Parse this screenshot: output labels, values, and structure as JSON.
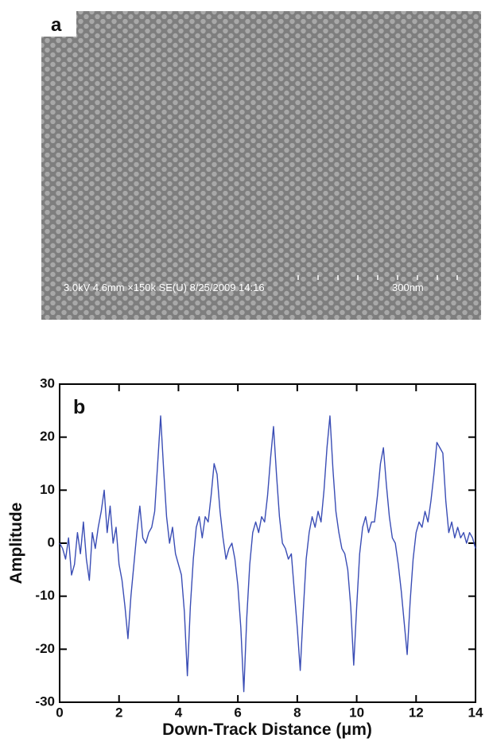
{
  "image_panel": {
    "label": "a",
    "info": "3.0kV 4.6mm ×150k SE(U) 8/25/2009 14:16",
    "scale_label": "300nm"
  },
  "chart_data": {
    "type": "line",
    "panel_label": "b",
    "x_label": "Down-Track Distance (μm)",
    "y_label": "Amplitude",
    "color": "#3a4db5",
    "x": [
      0,
      0.1,
      0.2,
      0.3,
      0.4,
      0.5,
      0.6,
      0.7,
      0.8,
      0.9,
      1,
      1.1,
      1.2,
      1.3,
      1.4,
      1.5,
      1.6,
      1.7,
      1.8,
      1.9,
      2,
      2.1,
      2.2,
      2.3,
      2.4,
      2.5,
      2.6,
      2.7,
      2.8,
      2.9,
      3,
      3.1,
      3.2,
      3.3,
      3.4,
      3.5,
      3.6,
      3.7,
      3.8,
      3.9,
      4,
      4.1,
      4.2,
      4.3,
      4.4,
      4.5,
      4.6,
      4.7,
      4.8,
      4.9,
      5,
      5.1,
      5.2,
      5.3,
      5.4,
      5.5,
      5.6,
      5.7,
      5.8,
      5.9,
      6,
      6.1,
      6.2,
      6.3,
      6.4,
      6.5,
      6.6,
      6.7,
      6.8,
      6.9,
      7,
      7.1,
      7.2,
      7.3,
      7.4,
      7.5,
      7.6,
      7.7,
      7.8,
      7.9,
      8,
      8.1,
      8.2,
      8.3,
      8.4,
      8.5,
      8.6,
      8.7,
      8.8,
      8.9,
      9,
      9.1,
      9.2,
      9.3,
      9.4,
      9.5,
      9.6,
      9.7,
      9.8,
      9.9,
      10,
      10.1,
      10.2,
      10.3,
      10.4,
      10.5,
      10.6,
      10.7,
      10.8,
      10.9,
      11,
      11.1,
      11.2,
      11.3,
      11.4,
      11.5,
      11.6,
      11.7,
      11.8,
      11.9,
      12,
      12.1,
      12.2,
      12.3,
      12.4,
      12.5,
      12.6,
      12.7,
      12.8,
      12.9,
      13,
      13.1,
      13.2,
      13.3,
      13.4,
      13.5,
      13.6,
      13.7,
      13.8,
      13.9,
      14
    ],
    "values": [
      0,
      -1,
      -3,
      1,
      -6,
      -4,
      2,
      -2,
      4,
      -3,
      -7,
      2,
      -1,
      3,
      6,
      10,
      2,
      7,
      0,
      3,
      -4,
      -7,
      -12,
      -18,
      -10,
      -4,
      2,
      7,
      1,
      0,
      2,
      3,
      6,
      15,
      24,
      14,
      5,
      0,
      3,
      -2,
      -4,
      -6,
      -13,
      -25,
      -12,
      -3,
      3,
      5,
      1,
      5,
      4,
      9,
      15,
      13,
      6,
      1,
      -3,
      -1,
      0,
      -3,
      -8,
      -16,
      -28,
      -14,
      -4,
      2,
      4,
      2,
      5,
      4,
      9,
      16,
      22,
      13,
      5,
      0,
      -1,
      -3,
      -2,
      -9,
      -16,
      -24,
      -13,
      -3,
      2,
      5,
      3,
      6,
      4,
      10,
      18,
      24,
      14,
      6,
      2,
      -1,
      -2,
      -5,
      -12,
      -23,
      -12,
      -2,
      3,
      5,
      2,
      4,
      4,
      9,
      15,
      18,
      11,
      5,
      1,
      0,
      -4,
      -9,
      -15,
      -21,
      -11,
      -3,
      2,
      4,
      3,
      6,
      4,
      8,
      13,
      19,
      18,
      17,
      8,
      2,
      4,
      1,
      3,
      1,
      2,
      0,
      2,
      1,
      -1
    ],
    "xlim": [
      0,
      14
    ],
    "ylim": [
      -30,
      30
    ],
    "xticks": [
      0,
      2,
      4,
      6,
      8,
      10,
      12,
      14
    ],
    "yticks": [
      -30,
      -20,
      -10,
      0,
      10,
      20,
      30
    ]
  }
}
